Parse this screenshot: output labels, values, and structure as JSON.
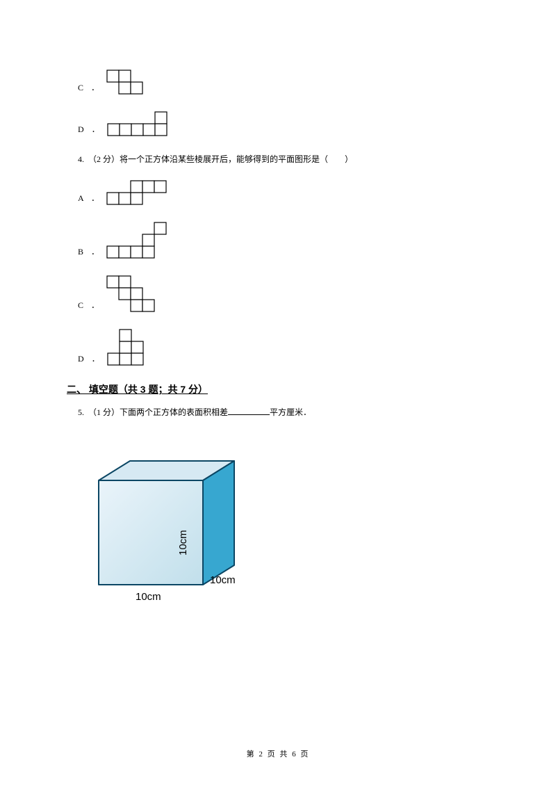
{
  "grid": {
    "cell": 17,
    "stroke": "#000000",
    "fill": "#ffffff"
  },
  "options_prev": {
    "C": {
      "label": "C ．",
      "cells": [
        [
          0,
          0
        ],
        [
          1,
          0
        ],
        [
          1,
          1
        ],
        [
          2,
          1
        ]
      ]
    },
    "D": {
      "label": "D ．",
      "cells": [
        [
          0,
          1
        ],
        [
          1,
          1
        ],
        [
          2,
          1
        ],
        [
          3,
          1
        ],
        [
          4,
          0
        ],
        [
          4,
          1
        ]
      ]
    }
  },
  "question4": {
    "text": "4.　（2 分）将一个正方体沿某些棱展开后，能够得到的平面图形是（　　）",
    "options": {
      "A": {
        "label": "A ．",
        "cells": [
          [
            0,
            1
          ],
          [
            1,
            1
          ],
          [
            2,
            1
          ],
          [
            2,
            0
          ],
          [
            3,
            0
          ],
          [
            4,
            0
          ]
        ]
      },
      "B": {
        "label": "B ．",
        "cells": [
          [
            0,
            2
          ],
          [
            1,
            2
          ],
          [
            2,
            2
          ],
          [
            3,
            2
          ],
          [
            3,
            1
          ],
          [
            4,
            0
          ]
        ]
      },
      "C": {
        "label": "C ．",
        "cells": [
          [
            0,
            0
          ],
          [
            1,
            0
          ],
          [
            1,
            1
          ],
          [
            2,
            1
          ],
          [
            2,
            2
          ],
          [
            3,
            2
          ]
        ]
      },
      "D": {
        "label": "D ．",
        "cells": [
          [
            0,
            2
          ],
          [
            1,
            2
          ],
          [
            1,
            1
          ],
          [
            1,
            0
          ],
          [
            2,
            1
          ],
          [
            2,
            2
          ]
        ]
      }
    }
  },
  "section2": {
    "header": "二、 填空题（共 3 题；共 7 分）"
  },
  "question5": {
    "text_pre": "5.　（1 分）下面两个正方体的表面积相差",
    "text_post": "平方厘米．"
  },
  "cube": {
    "front_fill": "#c1dfeb",
    "top_fill": "#d6e9f3",
    "side_fill": "#37a7d0",
    "edge": "#0b4664",
    "label_10cm_bottom": "10cm",
    "label_10cm_right": "10cm",
    "label_10cm_vertical": "10cm"
  },
  "footer": {
    "text": "第 2 页 共 6 页"
  }
}
